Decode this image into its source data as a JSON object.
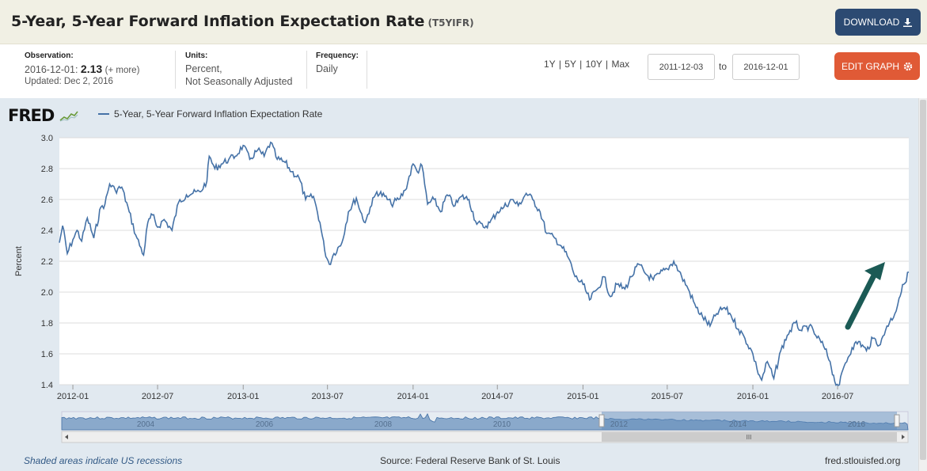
{
  "header": {
    "title": "5-Year, 5-Year Forward Inflation Expectation Rate",
    "series_code": "(T5YIFR)",
    "download_label": "DOWNLOAD"
  },
  "meta": {
    "observation_label": "Observation:",
    "observation_date": "2016-12-01:",
    "observation_value": "2.13",
    "observation_more": "(+ more)",
    "updated": "Updated: Dec 2, 2016",
    "units_label": "Units:",
    "units_line1": "Percent,",
    "units_line2": "Not Seasonally Adjusted",
    "frequency_label": "Frequency:",
    "frequency_value": "Daily",
    "range_1y": "1Y",
    "range_5y": "5Y",
    "range_10y": "10Y",
    "range_max": "Max",
    "range_sep": "|",
    "start_date": "2011-12-03",
    "to_label": "to",
    "end_date": "2016-12-01",
    "edit_label": "EDIT GRAPH"
  },
  "chart_header": {
    "logo": "FRED",
    "legend_series": "5-Year, 5-Year Forward Inflation Expectation Rate"
  },
  "footer": {
    "recession_note": "Shaded areas indicate US recessions",
    "source": "Source: Federal Reserve Bank of St. Louis",
    "site": "fred.stlouisfed.org"
  },
  "colors": {
    "series": "#4572a7",
    "arrow": "#1b5a55",
    "download_button": "#2c4a72",
    "edit_button": "#e05a36"
  },
  "chart_data": {
    "type": "line",
    "ylabel": "Percent",
    "ylim": [
      1.4,
      3.0
    ],
    "yticks": [
      "1.4",
      "1.6",
      "1.8",
      "2.0",
      "2.2",
      "2.4",
      "2.6",
      "2.8",
      "3.0"
    ],
    "xticks": [
      "2012-01",
      "2012-07",
      "2013-01",
      "2013-07",
      "2014-01",
      "2014-07",
      "2015-01",
      "2015-07",
      "2016-01",
      "2016-07"
    ],
    "xlim": [
      "2011-12-03",
      "2016-12-01"
    ],
    "grid": true,
    "annotation": "upward arrow near end of series",
    "series": [
      {
        "name": "5-Year, 5-Year Forward Inflation Expectation Rate",
        "points": [
          [
            "2011-12-03",
            2.32
          ],
          [
            "2011-12-10",
            2.43
          ],
          [
            "2011-12-20",
            2.25
          ],
          [
            "2012-01-01",
            2.34
          ],
          [
            "2012-01-10",
            2.4
          ],
          [
            "2012-01-20",
            2.33
          ],
          [
            "2012-02-01",
            2.48
          ],
          [
            "2012-02-15",
            2.35
          ],
          [
            "2012-03-01",
            2.55
          ],
          [
            "2012-03-10",
            2.57
          ],
          [
            "2012-03-20",
            2.7
          ],
          [
            "2012-04-01",
            2.66
          ],
          [
            "2012-04-15",
            2.68
          ],
          [
            "2012-05-01",
            2.52
          ],
          [
            "2012-05-15",
            2.37
          ],
          [
            "2012-06-01",
            2.24
          ],
          [
            "2012-06-10",
            2.45
          ],
          [
            "2012-06-20",
            2.5
          ],
          [
            "2012-07-01",
            2.42
          ],
          [
            "2012-07-15",
            2.47
          ],
          [
            "2012-08-01",
            2.4
          ],
          [
            "2012-08-15",
            2.58
          ],
          [
            "2012-09-01",
            2.63
          ],
          [
            "2012-09-15",
            2.64
          ],
          [
            "2012-10-01",
            2.65
          ],
          [
            "2012-10-15",
            2.72
          ],
          [
            "2012-10-20",
            2.88
          ],
          [
            "2012-11-01",
            2.8
          ],
          [
            "2012-11-15",
            2.83
          ],
          [
            "2012-12-01",
            2.86
          ],
          [
            "2012-12-15",
            2.88
          ],
          [
            "2013-01-01",
            2.95
          ],
          [
            "2013-01-15",
            2.86
          ],
          [
            "2013-02-01",
            2.92
          ],
          [
            "2013-02-15",
            2.88
          ],
          [
            "2013-03-01",
            2.97
          ],
          [
            "2013-03-15",
            2.86
          ],
          [
            "2013-04-01",
            2.84
          ],
          [
            "2013-04-15",
            2.78
          ],
          [
            "2013-05-01",
            2.74
          ],
          [
            "2013-05-15",
            2.6
          ],
          [
            "2013-06-01",
            2.62
          ],
          [
            "2013-06-15",
            2.45
          ],
          [
            "2013-06-25",
            2.27
          ],
          [
            "2013-07-05",
            2.18
          ],
          [
            "2013-07-15",
            2.25
          ],
          [
            "2013-08-01",
            2.32
          ],
          [
            "2013-08-15",
            2.52
          ],
          [
            "2013-09-01",
            2.61
          ],
          [
            "2013-09-10",
            2.52
          ],
          [
            "2013-09-20",
            2.45
          ],
          [
            "2013-10-01",
            2.55
          ],
          [
            "2013-10-15",
            2.65
          ],
          [
            "2013-11-01",
            2.62
          ],
          [
            "2013-11-15",
            2.57
          ],
          [
            "2013-12-01",
            2.6
          ],
          [
            "2013-12-15",
            2.66
          ],
          [
            "2014-01-01",
            2.83
          ],
          [
            "2014-01-10",
            2.78
          ],
          [
            "2014-01-20",
            2.82
          ],
          [
            "2014-02-01",
            2.57
          ],
          [
            "2014-02-15",
            2.6
          ],
          [
            "2014-03-01",
            2.52
          ],
          [
            "2014-03-15",
            2.63
          ],
          [
            "2014-04-01",
            2.56
          ],
          [
            "2014-04-15",
            2.62
          ],
          [
            "2014-05-01",
            2.6
          ],
          [
            "2014-05-15",
            2.46
          ],
          [
            "2014-06-01",
            2.42
          ],
          [
            "2014-06-15",
            2.45
          ],
          [
            "2014-07-01",
            2.52
          ],
          [
            "2014-07-15",
            2.55
          ],
          [
            "2014-08-01",
            2.6
          ],
          [
            "2014-08-15",
            2.56
          ],
          [
            "2014-09-01",
            2.64
          ],
          [
            "2014-09-15",
            2.6
          ],
          [
            "2014-10-01",
            2.52
          ],
          [
            "2014-10-15",
            2.38
          ],
          [
            "2014-11-01",
            2.35
          ],
          [
            "2014-11-15",
            2.3
          ],
          [
            "2014-12-01",
            2.22
          ],
          [
            "2014-12-15",
            2.1
          ],
          [
            "2015-01-01",
            2.05
          ],
          [
            "2015-01-15",
            1.95
          ],
          [
            "2015-02-01",
            2.02
          ],
          [
            "2015-02-15",
            2.1
          ],
          [
            "2015-03-01",
            1.97
          ],
          [
            "2015-03-15",
            2.05
          ],
          [
            "2015-04-01",
            2.02
          ],
          [
            "2015-04-15",
            2.1
          ],
          [
            "2015-05-01",
            2.18
          ],
          [
            "2015-05-15",
            2.12
          ],
          [
            "2015-06-01",
            2.08
          ],
          [
            "2015-06-15",
            2.12
          ],
          [
            "2015-07-01",
            2.15
          ],
          [
            "2015-07-15",
            2.2
          ],
          [
            "2015-08-01",
            2.1
          ],
          [
            "2015-08-15",
            2.02
          ],
          [
            "2015-09-01",
            1.9
          ],
          [
            "2015-09-15",
            1.84
          ],
          [
            "2015-10-01",
            1.78
          ],
          [
            "2015-10-15",
            1.86
          ],
          [
            "2015-11-01",
            1.9
          ],
          [
            "2015-11-15",
            1.85
          ],
          [
            "2015-12-01",
            1.76
          ],
          [
            "2015-12-15",
            1.7
          ],
          [
            "2016-01-01",
            1.6
          ],
          [
            "2016-01-10",
            1.5
          ],
          [
            "2016-01-20",
            1.43
          ],
          [
            "2016-02-01",
            1.55
          ],
          [
            "2016-02-15",
            1.44
          ],
          [
            "2016-03-01",
            1.62
          ],
          [
            "2016-03-15",
            1.72
          ],
          [
            "2016-04-01",
            1.8
          ],
          [
            "2016-04-15",
            1.75
          ],
          [
            "2016-05-01",
            1.78
          ],
          [
            "2016-05-15",
            1.72
          ],
          [
            "2016-06-01",
            1.65
          ],
          [
            "2016-06-15",
            1.55
          ],
          [
            "2016-06-25",
            1.42
          ],
          [
            "2016-07-05",
            1.4
          ],
          [
            "2016-07-15",
            1.52
          ],
          [
            "2016-08-01",
            1.64
          ],
          [
            "2016-08-15",
            1.68
          ],
          [
            "2016-09-01",
            1.62
          ],
          [
            "2016-09-15",
            1.7
          ],
          [
            "2016-10-01",
            1.66
          ],
          [
            "2016-10-15",
            1.78
          ],
          [
            "2016-11-01",
            1.86
          ],
          [
            "2016-11-10",
            1.96
          ],
          [
            "2016-11-20",
            2.05
          ],
          [
            "2016-12-01",
            2.13
          ]
        ]
      }
    ],
    "navigator": {
      "labels": [
        "2004",
        "2006",
        "2008",
        "2010",
        "2012",
        "2014",
        "2016"
      ]
    }
  }
}
